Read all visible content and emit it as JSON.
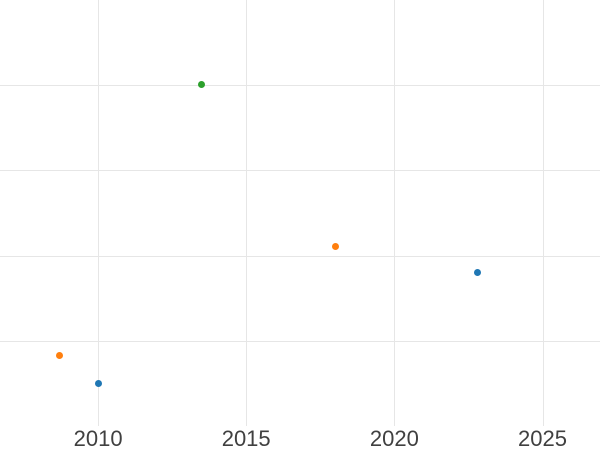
{
  "chart_data": {
    "type": "scatter",
    "title": "",
    "xlabel": "",
    "ylabel": "",
    "legend": "none",
    "grid": true,
    "background": "#ffffff",
    "x_tick_values": [
      2010,
      2015,
      2020,
      2025
    ],
    "x_tick_labels": [
      "2010",
      "2015",
      "2020",
      "2025"
    ],
    "x_range": [
      2006.69,
      2026.94
    ],
    "y_range": [
      0,
      4.99
    ],
    "y_gridline_values": [
      1,
      2,
      3,
      4
    ],
    "y_tick_labels_visible": false,
    "series": [
      {
        "name": "blue",
        "color": "#1f77b4",
        "points": [
          {
            "x": 2010.0,
            "y": 0.51
          },
          {
            "x": 2022.8,
            "y": 1.81
          }
        ]
      },
      {
        "name": "orange",
        "color": "#ff7f0e",
        "points": [
          {
            "x": 2008.7,
            "y": 0.84
          },
          {
            "x": 2018.0,
            "y": 2.11
          }
        ]
      },
      {
        "name": "green",
        "color": "#2ca02c",
        "points": [
          {
            "x": 2013.5,
            "y": 4.0
          }
        ]
      }
    ],
    "style": {
      "grid_color": "#e6e6e6",
      "tick_label_color": "#404040",
      "marker_diameter_px": 7
    }
  }
}
